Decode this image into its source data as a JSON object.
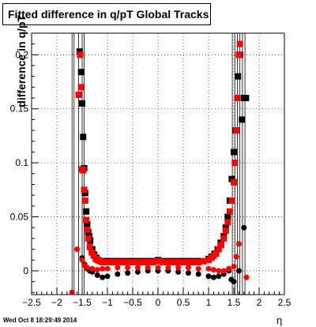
{
  "title": "Fitted difference in q/pT  Global Tracks",
  "footer": "Wed Oct  8 18:29:49 2014",
  "chart_data": {
    "type": "scatter",
    "title": "Fitted difference in q/pT  Global Tracks",
    "xlabel": "η",
    "ylabel": "difference in q/pT",
    "xlim": [
      -2.5,
      2.5
    ],
    "ylim": [
      -0.022,
      0.22
    ],
    "grid": true,
    "xticks": [
      "−2.5",
      "−2",
      "−1.5",
      "−1",
      "−0.5",
      "0",
      "0.5",
      "1",
      "1.5",
      "2",
      "2.5"
    ],
    "yticks": [
      "0",
      "0.05",
      "0.1",
      "0.15",
      "0.2"
    ],
    "colors": {
      "series1": "#000000",
      "series2": "#ff0000"
    },
    "vlines": [
      -1.7,
      -1.66,
      -1.57,
      -1.5,
      -1.46,
      1.47,
      1.52,
      1.57,
      1.62,
      1.67,
      1.72
    ],
    "series": [
      {
        "marker": "square",
        "color": "#000000",
        "x": [
          -1.55,
          -1.52,
          -1.5,
          -1.48,
          -1.46,
          -1.44,
          -1.42,
          -1.4,
          -1.38,
          -1.36,
          -1.34,
          -1.3,
          -1.26,
          -1.22,
          -1.18,
          -1.14,
          -1.1,
          -1.05,
          -1.0,
          -0.9,
          -0.8,
          -0.7,
          -0.6,
          -0.5,
          -0.4,
          -0.3,
          -0.2,
          -0.1,
          0.0,
          0.1,
          0.2,
          0.3,
          0.4,
          0.5,
          0.6,
          0.7,
          0.8,
          0.9,
          1.0,
          1.06,
          1.12,
          1.18,
          1.24,
          1.3,
          1.34,
          1.38,
          1.42,
          1.46,
          1.5,
          1.54,
          1.58,
          1.62,
          1.66,
          1.7,
          1.74
        ],
        "y": [
          0.203,
          0.184,
          0.155,
          0.124,
          0.095,
          0.072,
          0.055,
          0.043,
          0.036,
          0.032,
          0.028,
          0.02,
          0.015,
          0.012,
          0.01,
          0.009,
          0.009,
          0.009,
          0.009,
          0.009,
          0.009,
          0.009,
          0.009,
          0.009,
          0.009,
          0.009,
          0.009,
          0.009,
          0.01,
          0.009,
          0.009,
          0.009,
          0.009,
          0.009,
          0.009,
          0.009,
          0.009,
          0.009,
          0.011,
          0.013,
          0.016,
          0.02,
          0.026,
          0.032,
          0.04,
          0.05,
          0.065,
          0.085,
          0.11,
          0.13,
          0.18,
          0.2,
          0.14,
          0.16,
          0.16
        ]
      },
      {
        "marker": "circle",
        "color": "#000000",
        "x": [
          -1.5,
          -1.45,
          -1.4,
          -1.35,
          -1.3,
          -1.2,
          -1.1,
          -1.0,
          -0.8,
          -0.6,
          -0.4,
          -0.2,
          0.0,
          0.2,
          0.4,
          0.6,
          0.8,
          1.0,
          1.1,
          1.2,
          1.3,
          1.4,
          1.45,
          1.5,
          1.6,
          1.7
        ],
        "y": [
          0.012,
          0.006,
          0.002,
          0.0,
          -0.001,
          -0.004,
          -0.006,
          -0.005,
          -0.003,
          -0.002,
          -0.001,
          0.0,
          0.0,
          0.0,
          -0.001,
          -0.002,
          -0.003,
          -0.005,
          -0.006,
          -0.005,
          -0.003,
          0.0,
          -0.008,
          -0.01,
          0.0,
          0.04
        ]
      },
      {
        "marker": "square",
        "color": "#ff0000",
        "x": [
          -1.57,
          -1.54,
          -1.52,
          -1.5,
          -1.48,
          -1.46,
          -1.44,
          -1.42,
          -1.4,
          -1.38,
          -1.35,
          -1.31,
          -1.27,
          -1.23,
          -1.19,
          -1.15,
          -1.1,
          -1.05,
          -1.0,
          -0.9,
          -0.8,
          -0.7,
          -0.6,
          -0.5,
          -0.4,
          -0.3,
          -0.2,
          -0.1,
          0.0,
          0.1,
          0.2,
          0.3,
          0.4,
          0.5,
          0.6,
          0.7,
          0.8,
          0.9,
          1.0,
          1.05,
          1.1,
          1.15,
          1.2,
          1.25,
          1.3,
          1.34,
          1.38,
          1.42,
          1.46,
          1.5,
          1.52,
          1.55,
          1.57,
          1.6,
          1.62
        ],
        "y": [
          0.163,
          0.2,
          0.17,
          0.094,
          0.093,
          0.075,
          0.065,
          0.047,
          0.038,
          0.03,
          0.022,
          0.017,
          0.014,
          0.011,
          0.01,
          0.009,
          0.008,
          0.008,
          0.008,
          0.008,
          0.008,
          0.008,
          0.008,
          0.008,
          0.008,
          0.008,
          0.008,
          0.008,
          0.009,
          0.008,
          0.008,
          0.008,
          0.008,
          0.008,
          0.008,
          0.008,
          0.008,
          0.009,
          0.01,
          0.012,
          0.014,
          0.016,
          0.02,
          0.024,
          0.03,
          0.037,
          0.045,
          0.055,
          0.065,
          0.082,
          0.1,
          0.13,
          0.16,
          0.2,
          0.21
        ]
      },
      {
        "marker": "circle",
        "color": "#ff0000",
        "x": [
          -1.7,
          -1.6,
          -1.5,
          -1.45,
          -1.4,
          -1.3,
          -1.2,
          -1.1,
          -1.0,
          -0.8,
          -0.6,
          -0.4,
          -0.2,
          0.0,
          0.2,
          0.4,
          0.6,
          0.8,
          1.0,
          1.1,
          1.2,
          1.3,
          1.4,
          1.5,
          1.55,
          1.6,
          1.75
        ],
        "y": [
          -0.02,
          0.02,
          0.01,
          0.005,
          0.003,
          0.002,
          0.001,
          0.002,
          0.002,
          0.003,
          0.003,
          0.003,
          0.003,
          0.003,
          0.003,
          0.003,
          0.003,
          0.002,
          0.002,
          0.001,
          0.0,
          0.0,
          0.002,
          0.004,
          0.013,
          0.025,
          -0.006
        ]
      }
    ]
  }
}
